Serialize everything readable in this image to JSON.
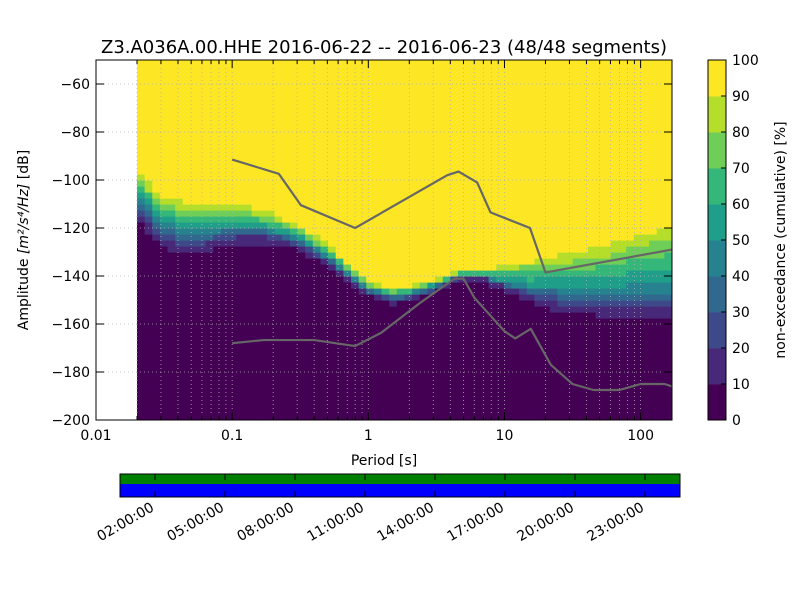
{
  "chart_data": {
    "type": "heatmap",
    "title": "Z3.A036A.00.HHE   2016-06-22 -- 2016-06-23  (48/48 segments)",
    "xlabel": "Period [s]",
    "ylabel_prefix": "Amplitude ",
    "ylabel_units": "[m²/s⁴/Hz]",
    "ylabel_suffix": " [dB]",
    "x_scale": "log",
    "xlim": [
      0.01,
      170
    ],
    "ylim": [
      -200,
      -50
    ],
    "x_ticks": [
      {
        "value": 0.01,
        "label": "0.01"
      },
      {
        "value": 0.1,
        "label": "0.1"
      },
      {
        "value": 1,
        "label": "1"
      },
      {
        "value": 10,
        "label": "10"
      },
      {
        "value": 100,
        "label": "100"
      }
    ],
    "y_ticks": [
      {
        "value": -60,
        "label": "−60"
      },
      {
        "value": -80,
        "label": "−80"
      },
      {
        "value": -100,
        "label": "−100"
      },
      {
        "value": -120,
        "label": "−120"
      },
      {
        "value": -140,
        "label": "−140"
      },
      {
        "value": -160,
        "label": "−160"
      },
      {
        "value": -180,
        "label": "−180"
      },
      {
        "value": -200,
        "label": "−200"
      }
    ],
    "grid": true,
    "data_period_start": 0.02,
    "density_bands": {
      "description": "dB level below which cumulative non-exceedance is under each threshold, per period",
      "periods": [
        0.02,
        0.022,
        0.03,
        0.05,
        0.07,
        0.1,
        0.15,
        0.2,
        0.3,
        0.5,
        0.7,
        1,
        1.5,
        2,
        3,
        4,
        5,
        7,
        10,
        15,
        20,
        30,
        50,
        70,
        100,
        170
      ],
      "levels": [
        {
          "nonexceedance": 5,
          "db": [
            -118,
            -122,
            -130,
            -133,
            -131,
            -129,
            -128,
            -128,
            -130,
            -137,
            -144,
            -149,
            -152,
            -151,
            -148,
            -144,
            -142,
            -143,
            -147,
            -152,
            -155,
            -157,
            -158,
            -159,
            -159,
            -160
          ]
        },
        {
          "nonexceedance": 20,
          "db": [
            -112,
            -115,
            -125,
            -128,
            -126,
            -124,
            -123,
            -124,
            -127,
            -134,
            -141,
            -147,
            -150,
            -149,
            -146,
            -142,
            -140,
            -141,
            -144,
            -148,
            -150,
            -152,
            -153,
            -153,
            -153,
            -153
          ]
        },
        {
          "nonexceedance": 50,
          "db": [
            -105,
            -108,
            -117,
            -121,
            -120,
            -119,
            -119,
            -121,
            -124,
            -131,
            -138,
            -145,
            -148,
            -147,
            -144,
            -141,
            -139,
            -140,
            -142,
            -144,
            -144,
            -144,
            -144,
            -144,
            -143,
            -143
          ]
        },
        {
          "nonexceedance": 80,
          "db": [
            -99,
            -101,
            -110,
            -113,
            -113,
            -113,
            -114,
            -116,
            -120,
            -128,
            -136,
            -143,
            -146,
            -145,
            -142,
            -140,
            -138,
            -138,
            -137,
            -136,
            -135,
            -134,
            -132,
            -130,
            -127,
            -125
          ]
        },
        {
          "nonexceedance": 100,
          "db": [
            -94,
            -95,
            -104,
            -106,
            -106,
            -107,
            -109,
            -112,
            -117,
            -125,
            -133,
            -141,
            -144,
            -143,
            -140,
            -138,
            -137,
            -136,
            -134,
            -132,
            -130,
            -127,
            -124,
            -121,
            -118,
            -115
          ]
        }
      ]
    },
    "noise_models": [
      {
        "points": [
          [
            0.1,
            -91.5
          ],
          [
            0.22,
            -97.4
          ],
          [
            0.32,
            -110.5
          ],
          [
            0.8,
            -120
          ],
          [
            3.8,
            -98
          ],
          [
            4.6,
            -96.5
          ],
          [
            6.3,
            -101
          ],
          [
            7.9,
            -113.5
          ],
          [
            15.4,
            -120
          ],
          [
            20,
            -138.5
          ],
          [
            170,
            -129
          ]
        ]
      },
      {
        "points": [
          [
            0.1,
            -168
          ],
          [
            0.17,
            -166.7
          ],
          [
            0.4,
            -166.7
          ],
          [
            0.8,
            -169.2
          ],
          [
            1.24,
            -163.7
          ],
          [
            2.4,
            -151.2
          ],
          [
            4.3,
            -141.1
          ],
          [
            5.0,
            -141.1
          ],
          [
            6.0,
            -149
          ],
          [
            10,
            -163
          ],
          [
            12,
            -166
          ],
          [
            15.6,
            -162
          ],
          [
            21.9,
            -177
          ],
          [
            31.6,
            -185
          ],
          [
            45,
            -187.5
          ],
          [
            70,
            -187.5
          ],
          [
            100,
            -185
          ],
          [
            150,
            -185
          ],
          [
            170,
            -186
          ]
        ]
      }
    ],
    "colorbar": {
      "label": "non-exceedance (cumulative) [%]",
      "ticks": [
        "0",
        "10",
        "20",
        "30",
        "40",
        "50",
        "60",
        "70",
        "80",
        "90",
        "100"
      ],
      "colormap": [
        "#440154",
        "#482878",
        "#3e4989",
        "#31688e",
        "#26828e",
        "#1f9e89",
        "#35b779",
        "#6ece58",
        "#b5de2b",
        "#fde725"
      ]
    },
    "timeline": {
      "labels": [
        "02:00:00",
        "05:00:00",
        "08:00:00",
        "11:00:00",
        "14:00:00",
        "17:00:00",
        "20:00:00",
        "23:00:00"
      ],
      "top_band_color": "#008000",
      "bottom_band_color": "#0000ff"
    }
  },
  "colors": {
    "noise_model_line": "#666666",
    "grid": "#b0b0b0",
    "no_data": "#ffffff"
  }
}
